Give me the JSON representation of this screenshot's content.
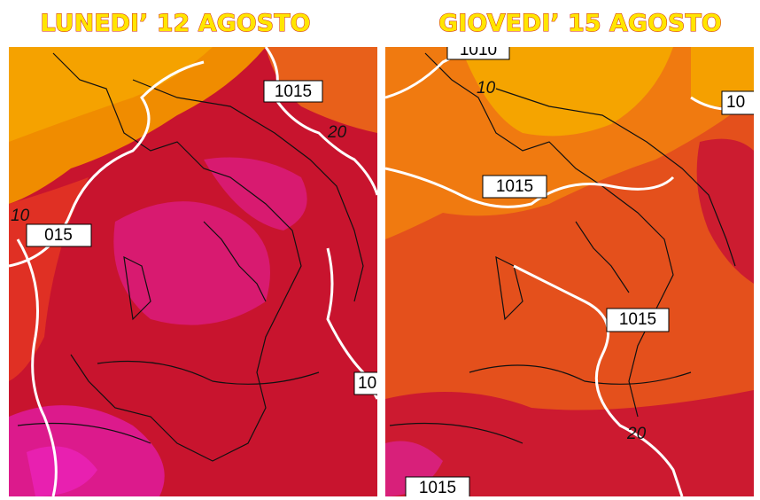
{
  "panels": [
    {
      "title": "LUNEDI’ 12 AGOSTO",
      "isobar_labels": [
        "1015",
        "015",
        "10"
      ],
      "contour_labels": [
        "20",
        "10"
      ]
    },
    {
      "title": "GIOVEDI’ 15 AGOSTO",
      "isobar_labels": [
        "1010",
        "1015",
        "1015",
        "10",
        "1015"
      ],
      "contour_labels": [
        "10",
        "20"
      ]
    }
  ]
}
